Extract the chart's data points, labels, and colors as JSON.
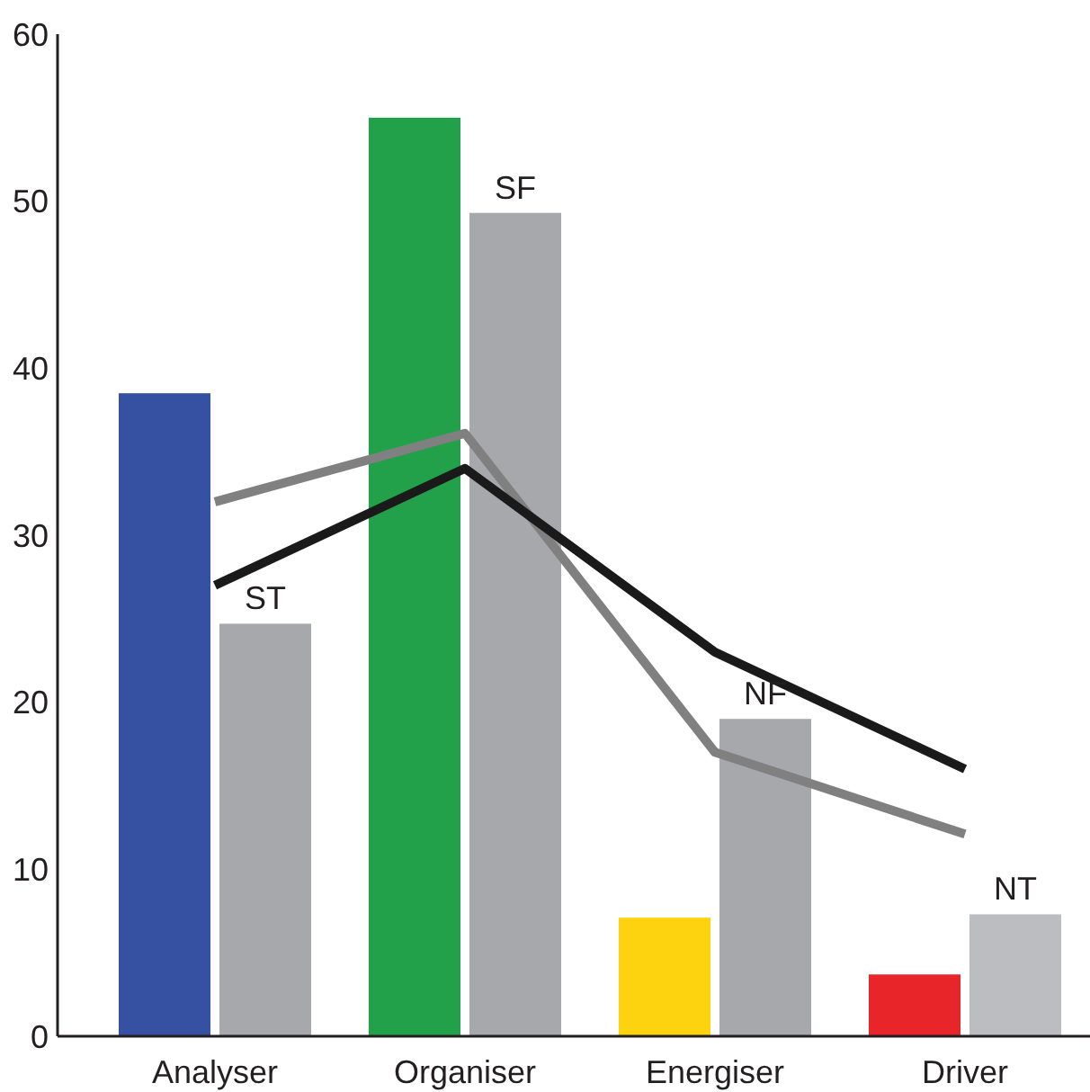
{
  "chart_data": {
    "type": "bar",
    "categories": [
      "Analyser",
      "Organiser",
      "Energiser",
      "Driver"
    ],
    "series": [
      {
        "colors": [
          "#3651a1",
          "#22a04a",
          "#fdd20e",
          "#e8262a"
        ],
        "values": [
          38.5,
          55,
          7.1,
          3.7
        ]
      },
      {
        "colors": [
          "#a7a8ab",
          "#a7a8ab",
          "#a7a8ab",
          "#bcbdc0"
        ],
        "values": [
          24.7,
          49.3,
          19,
          7.3
        ]
      },
      {
        "type": "line",
        "color": "#808080",
        "values": [
          32,
          36.1,
          17,
          12.1
        ]
      },
      {
        "type": "line",
        "color": "#1a1a1a",
        "values": [
          27,
          34,
          23,
          16
        ]
      }
    ],
    "annotations": [
      {
        "text": "ST",
        "x": "Analyser",
        "y": 24.7
      },
      {
        "text": "SF",
        "x": "Organiser",
        "y": 49.3
      },
      {
        "text": "NF",
        "x": "Energiser",
        "y": 19
      },
      {
        "text": "NT",
        "x": "Driver",
        "y": 7.3
      }
    ],
    "ylim": [
      0,
      60
    ],
    "yticks": [
      0,
      10,
      20,
      30,
      40,
      50,
      60
    ],
    "grid": false,
    "marker": "none",
    "line_style": "solid"
  }
}
